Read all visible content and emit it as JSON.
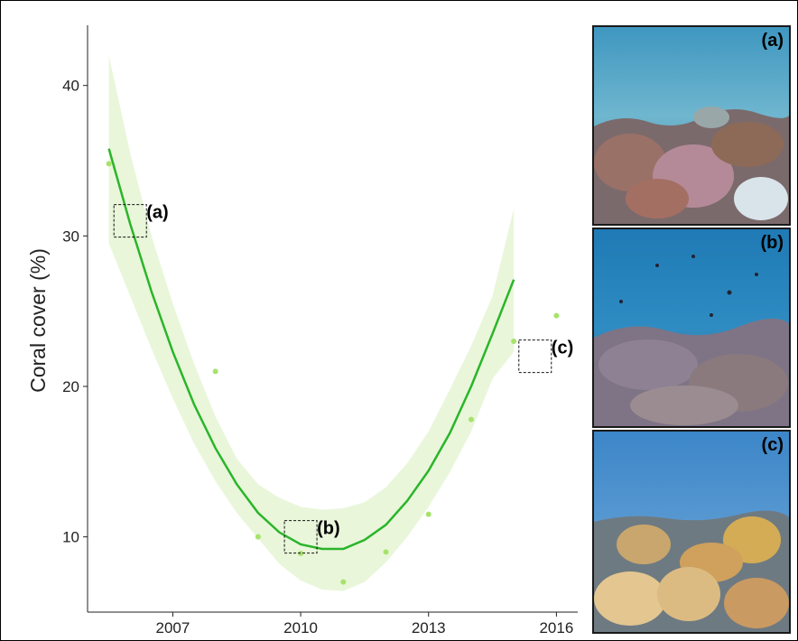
{
  "chart_data": {
    "type": "scatter",
    "x": [
      2005.5,
      2008,
      2009,
      2010,
      2011,
      2012,
      2013,
      2014,
      2015,
      2016
    ],
    "y": [
      34.8,
      21.0,
      10.0,
      8.9,
      7.0,
      9.0,
      11.5,
      17.8,
      23.0,
      24.7
    ],
    "trend": {
      "type": "quadratic",
      "x": [
        2005.5,
        2006,
        2006.5,
        2007,
        2007.5,
        2008,
        2008.5,
        2009,
        2009.5,
        2010,
        2010.5,
        2011,
        2011.5,
        2012,
        2012.5,
        2013,
        2013.5,
        2014,
        2014.5,
        2015,
        2015.5,
        2016
      ],
      "y": [
        35.8,
        30.8,
        26.3,
        22.3,
        18.8,
        15.9,
        13.5,
        11.6,
        10.3,
        9.5,
        9.2,
        9.2,
        9.8,
        10.8,
        12.4,
        14.4,
        16.9,
        20.0,
        23.5,
        27.1,
        null,
        null
      ],
      "ci_upper": [
        42.0,
        35.5,
        30.0,
        25.5,
        21.5,
        18.0,
        15.2,
        13.5,
        12.6,
        12.0,
        11.8,
        11.9,
        12.3,
        13.3,
        14.9,
        17.0,
        19.8,
        22.7,
        26.0,
        31.8,
        null,
        null
      ],
      "ci_lower": [
        29.5,
        26.0,
        22.5,
        19.2,
        16.2,
        13.7,
        11.6,
        9.9,
        8.2,
        7.1,
        6.5,
        6.4,
        7.0,
        8.3,
        10.0,
        12.0,
        14.3,
        17.0,
        20.5,
        22.3,
        null,
        null
      ]
    },
    "xlabel": "",
    "ylabel": "Coral cover (%)",
    "xticks": [
      "2007",
      "2010",
      "2013",
      "2016"
    ],
    "yticks": [
      "10",
      "20",
      "30",
      "40"
    ],
    "xlim": [
      2005,
      2016.5
    ],
    "ylim": [
      5,
      44
    ],
    "grid": false,
    "annotations": [
      {
        "label": "(a)",
        "x": 2006,
        "y": 31
      },
      {
        "label": "(b)",
        "x": 2010,
        "y": 10
      },
      {
        "label": "(c)",
        "x": 2015.5,
        "y": 22
      }
    ],
    "colors": {
      "point": "#a6e36b",
      "line": "#2ab52a",
      "band": "#e9f6da"
    }
  },
  "panels": [
    {
      "label": "(a)",
      "scene": "shallow reef with dense branching and table corals"
    },
    {
      "label": "(b)",
      "scene": "degraded reef with fish over rubble"
    },
    {
      "label": "(c)",
      "scene": "recovering reef with branching corals"
    }
  ]
}
